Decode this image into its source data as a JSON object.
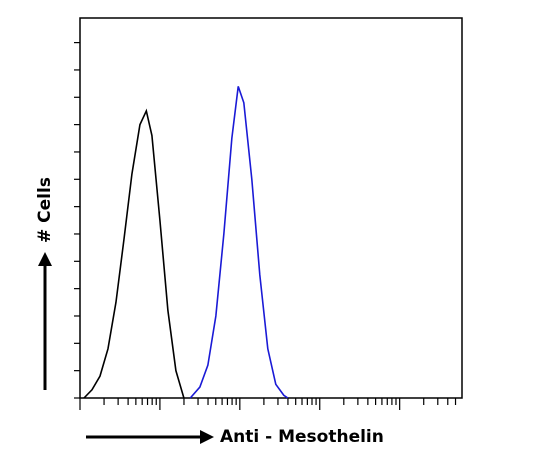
{
  "chart_data": {
    "type": "line",
    "xlabel": "Anti - Mesothelin",
    "ylabel": "# Cells",
    "xlim": [
      0,
      4.78
    ],
    "ylim": [
      0,
      13.9
    ],
    "xticks": [
      0,
      0.301,
      0.477,
      0.602,
      0.699,
      0.778,
      0.845,
      0.903,
      0.954,
      1,
      1.301,
      1.477,
      1.602,
      1.699,
      1.778,
      1.845,
      1.903,
      1.954,
      2,
      2.301,
      2.477,
      2.602,
      2.699,
      2.778,
      2.845,
      2.903,
      2.954,
      3,
      3.301,
      3.477,
      3.602,
      3.699,
      3.778,
      3.845,
      3.903,
      3.954,
      4,
      4.301,
      4.477,
      4.602,
      4.699
    ],
    "yticks": [
      0,
      1,
      2,
      3,
      4,
      5,
      6,
      7,
      8,
      9,
      10,
      11,
      12,
      13
    ],
    "series": [
      {
        "color": "#000000",
        "x": [
          0.05,
          0.15,
          0.25,
          0.35,
          0.45,
          0.55,
          0.65,
          0.75,
          0.83,
          0.9,
          1.0,
          1.1,
          1.2,
          1.3
        ],
        "values": [
          0,
          0.3,
          0.8,
          1.8,
          3.5,
          5.8,
          8.2,
          10,
          10.5,
          9.6,
          6.5,
          3.2,
          1.0,
          0
        ]
      },
      {
        "color": "#1a1ad6",
        "x": [
          1.38,
          1.5,
          1.6,
          1.7,
          1.8,
          1.9,
          1.98,
          2.05,
          2.15,
          2.25,
          2.35,
          2.45,
          2.55,
          2.6
        ],
        "values": [
          0,
          0.4,
          1.2,
          3,
          6,
          9.5,
          11.4,
          10.8,
          8,
          4.5,
          1.8,
          0.5,
          0.1,
          0
        ]
      }
    ]
  }
}
